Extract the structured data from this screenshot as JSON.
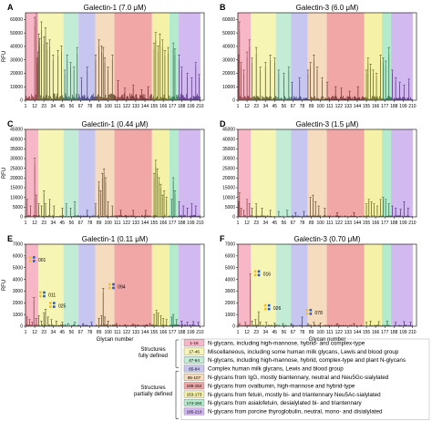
{
  "figure": {
    "xlabel": "Glycan number",
    "ylabel": "RFU",
    "xticks": [
      1,
      12,
      23,
      34,
      45,
      56,
      67,
      78,
      89,
      100,
      111,
      122,
      133,
      144,
      155,
      166,
      177,
      188,
      199,
      210
    ],
    "xlim": [
      1,
      215
    ]
  },
  "regions": [
    {
      "code": "1-16",
      "start": 1,
      "end": 16,
      "color": "#f7b7c6",
      "text": "N-glycans, including high-mannose, hybrid- and complex-type"
    },
    {
      "code": "17-46",
      "start": 17,
      "end": 46,
      "color": "#f7f5b4",
      "text": "Miscellaneous, including some human milk glycans, Lewis and blood group"
    },
    {
      "code": "47-64",
      "start": 47,
      "end": 64,
      "color": "#c3ecd6",
      "text": "N-glycans, including high-mannose, hybrid, complex-type and plant N-glycans"
    },
    {
      "code": "65-84",
      "start": 65,
      "end": 84,
      "color": "#c7c6f0",
      "text": "Complex human milk glycans, Lewis and blood group"
    },
    {
      "code": "85-107",
      "start": 85,
      "end": 107,
      "color": "#f6dcbf",
      "text": "N-glycans from IgG, mostly biantennary, neutral and Neu5Gc-sialylated"
    },
    {
      "code": "108-152",
      "start": 108,
      "end": 152,
      "color": "#f2a7a7",
      "text": "N-glycans from ovalbumin, high-mannose and hybrid-type"
    },
    {
      "code": "153-173",
      "start": 153,
      "end": 173,
      "color": "#f5f2a8",
      "text": "N-glycans from fetuin, mostly bi- and triantennary Neu5Ac-sialylated"
    },
    {
      "code": "174-184",
      "start": 174,
      "end": 184,
      "color": "#b5ebcd",
      "text": "N-glycans from asialofetuin, desialylated bi- and triantennary"
    },
    {
      "code": "185-210",
      "start": 185,
      "end": 210,
      "color": "#d2b9ef",
      "text": "N-glycans from porcine thyroglobulin, neutral, mono- and disialylated"
    }
  ],
  "legend": {
    "fully_defined": "Structures fully defined",
    "partially_defined": "Structures partially defined"
  },
  "chart_data": [
    {
      "type": "bar",
      "panel": "A",
      "title": "Galectin-1 (7.0 μM)",
      "ylabel": "RFU",
      "xlabel": "",
      "ylim": [
        0,
        65000
      ],
      "yticks": [
        0,
        10000,
        20000,
        30000,
        40000,
        50000,
        60000
      ],
      "peaks": [
        [
          12,
          55000
        ],
        [
          14,
          60000
        ],
        [
          15,
          28000
        ],
        [
          16,
          32000
        ],
        [
          17,
          44000
        ],
        [
          18,
          41000
        ],
        [
          20,
          52000
        ],
        [
          23,
          42000
        ],
        [
          25,
          48000
        ],
        [
          27,
          38000
        ],
        [
          30,
          40000
        ],
        [
          34,
          30000
        ],
        [
          40,
          33000
        ],
        [
          44,
          36000
        ],
        [
          48,
          20000
        ],
        [
          51,
          30000
        ],
        [
          55,
          25000
        ],
        [
          59,
          22000
        ],
        [
          63,
          35000
        ],
        [
          68,
          15000
        ],
        [
          75,
          22000
        ],
        [
          85,
          30000
        ],
        [
          89,
          40000
        ],
        [
          92,
          36000
        ],
        [
          94,
          35000
        ],
        [
          96,
          28000
        ],
        [
          100,
          22000
        ],
        [
          105,
          30000
        ],
        [
          112,
          13000
        ],
        [
          120,
          8000
        ],
        [
          130,
          10000
        ],
        [
          140,
          7000
        ],
        [
          148,
          9000
        ],
        [
          155,
          38000
        ],
        [
          157,
          45000
        ],
        [
          160,
          36000
        ],
        [
          162,
          44000
        ],
        [
          165,
          40000
        ],
        [
          168,
          33000
        ],
        [
          172,
          35000
        ],
        [
          178,
          38000
        ],
        [
          180,
          34000
        ],
        [
          185,
          30000
        ],
        [
          188,
          22000
        ],
        [
          195,
          18000
        ],
        [
          200,
          15000
        ],
        [
          205,
          25000
        ],
        [
          209,
          17000
        ]
      ],
      "baseline": 3000
    },
    {
      "type": "bar",
      "panel": "B",
      "title": "Galectin-3 (6.0 μM)",
      "ylabel": "",
      "xlabel": "",
      "ylim": [
        0,
        65000
      ],
      "yticks": [
        0,
        10000,
        20000,
        30000,
        40000,
        50000,
        60000
      ],
      "peaks": [
        [
          2,
          30000
        ],
        [
          3,
          52000
        ],
        [
          5,
          25000
        ],
        [
          8,
          20000
        ],
        [
          12,
          32000
        ],
        [
          15,
          40000
        ],
        [
          18,
          28000
        ],
        [
          23,
          35000
        ],
        [
          28,
          22000
        ],
        [
          34,
          25000
        ],
        [
          40,
          30000
        ],
        [
          45,
          28000
        ],
        [
          50,
          20000
        ],
        [
          56,
          18000
        ],
        [
          62,
          22000
        ],
        [
          66,
          12000
        ],
        [
          75,
          15000
        ],
        [
          85,
          20000
        ],
        [
          88,
          25000
        ],
        [
          92,
          30000
        ],
        [
          96,
          22000
        ],
        [
          102,
          15000
        ],
        [
          108,
          12000
        ],
        [
          118,
          9000
        ],
        [
          125,
          8000
        ],
        [
          135,
          6000
        ],
        [
          145,
          9000
        ],
        [
          155,
          20000
        ],
        [
          157,
          28000
        ],
        [
          160,
          24000
        ],
        [
          163,
          20000
        ],
        [
          167,
          18000
        ],
        [
          172,
          30000
        ],
        [
          175,
          28000
        ],
        [
          178,
          26000
        ],
        [
          182,
          35000
        ],
        [
          186,
          20000
        ],
        [
          190,
          15000
        ],
        [
          195,
          12000
        ],
        [
          200,
          10000
        ],
        [
          206,
          14000
        ]
      ],
      "baseline": 2000
    },
    {
      "type": "bar",
      "panel": "C",
      "title": "Galectin-1 (0.44 μM)",
      "ylabel": "RFU",
      "xlabel": "",
      "ylim": [
        0,
        45000
      ],
      "yticks": [
        0,
        5000,
        10000,
        15000,
        20000,
        25000,
        30000,
        35000,
        40000,
        45000
      ],
      "peaks": [
        [
          3,
          8000
        ],
        [
          7,
          5000
        ],
        [
          12,
          27000
        ],
        [
          14,
          10000
        ],
        [
          17,
          6000
        ],
        [
          20,
          5000
        ],
        [
          23,
          12000
        ],
        [
          25,
          6000
        ],
        [
          30,
          8000
        ],
        [
          35,
          5000
        ],
        [
          45,
          4000
        ],
        [
          50,
          6000
        ],
        [
          55,
          4000
        ],
        [
          60,
          7000
        ],
        [
          75,
          3000
        ],
        [
          85,
          6000
        ],
        [
          89,
          16000
        ],
        [
          91,
          12000
        ],
        [
          93,
          20000
        ],
        [
          95,
          22000
        ],
        [
          97,
          18000
        ],
        [
          100,
          7000
        ],
        [
          105,
          5000
        ],
        [
          115,
          3000
        ],
        [
          130,
          3000
        ],
        [
          145,
          3000
        ],
        [
          155,
          20000
        ],
        [
          157,
          26000
        ],
        [
          159,
          22000
        ],
        [
          161,
          18000
        ],
        [
          163,
          15000
        ],
        [
          165,
          10000
        ],
        [
          167,
          12000
        ],
        [
          170,
          9000
        ],
        [
          176,
          8000
        ],
        [
          178,
          18000
        ],
        [
          180,
          12000
        ],
        [
          185,
          7000
        ],
        [
          190,
          5000
        ],
        [
          195,
          4000
        ],
        [
          200,
          6000
        ],
        [
          205,
          5000
        ]
      ],
      "baseline": 600
    },
    {
      "type": "bar",
      "panel": "D",
      "title": "Galectin-3 (1.5 μM)",
      "ylabel": "",
      "xlabel": "",
      "ylim": [
        0,
        45000
      ],
      "yticks": [
        0,
        5000,
        10000,
        15000,
        20000,
        25000,
        30000,
        35000,
        40000,
        45000
      ],
      "peaks": [
        [
          2,
          7000
        ],
        [
          3,
          11000
        ],
        [
          5,
          4000
        ],
        [
          8,
          3000
        ],
        [
          12,
          8000
        ],
        [
          15,
          6000
        ],
        [
          18,
          4000
        ],
        [
          23,
          6000
        ],
        [
          30,
          4000
        ],
        [
          40,
          3000
        ],
        [
          50,
          2500
        ],
        [
          60,
          3000
        ],
        [
          70,
          2000
        ],
        [
          80,
          2500
        ],
        [
          88,
          9000
        ],
        [
          91,
          10000
        ],
        [
          94,
          7000
        ],
        [
          98,
          5000
        ],
        [
          105,
          4000
        ],
        [
          120,
          2000
        ],
        [
          140,
          2000
        ],
        [
          155,
          6000
        ],
        [
          158,
          8000
        ],
        [
          161,
          7000
        ],
        [
          164,
          6000
        ],
        [
          168,
          5000
        ],
        [
          172,
          8000
        ],
        [
          175,
          9000
        ],
        [
          178,
          8000
        ],
        [
          182,
          6000
        ],
        [
          186,
          5000
        ],
        [
          190,
          4000
        ],
        [
          196,
          3500
        ],
        [
          200,
          7000
        ],
        [
          205,
          4000
        ]
      ],
      "baseline": 500
    },
    {
      "type": "bar",
      "panel": "E",
      "title": "Galectin-1 (0.11 μM)",
      "ylabel": "RFU",
      "xlabel": "Glycan number",
      "ylim": [
        0,
        7000
      ],
      "yticks": [
        0,
        1000,
        2000,
        3000,
        4000,
        5000,
        6000,
        7000
      ],
      "peaks": [
        [
          1,
          5200
        ],
        [
          3,
          700
        ],
        [
          6,
          500
        ],
        [
          9,
          300
        ],
        [
          11,
          2200
        ],
        [
          14,
          600
        ],
        [
          17,
          800
        ],
        [
          20,
          400
        ],
        [
          23,
          1000
        ],
        [
          25,
          1300
        ],
        [
          28,
          700
        ],
        [
          32,
          500
        ],
        [
          38,
          400
        ],
        [
          45,
          300
        ],
        [
          52,
          200
        ],
        [
          60,
          300
        ],
        [
          70,
          200
        ],
        [
          80,
          300
        ],
        [
          89,
          600
        ],
        [
          92,
          800
        ],
        [
          94,
          2900
        ],
        [
          96,
          700
        ],
        [
          100,
          400
        ],
        [
          110,
          200
        ],
        [
          130,
          150
        ],
        [
          150,
          200
        ],
        [
          155,
          900
        ],
        [
          158,
          1200
        ],
        [
          160,
          1000
        ],
        [
          163,
          800
        ],
        [
          166,
          600
        ],
        [
          170,
          500
        ],
        [
          176,
          700
        ],
        [
          178,
          900
        ],
        [
          182,
          500
        ],
        [
          188,
          400
        ],
        [
          195,
          300
        ],
        [
          202,
          350
        ],
        [
          208,
          300
        ]
      ],
      "baseline": 100
    },
    {
      "type": "bar",
      "panel": "F",
      "title": "Galectin-3 (0.70 μM)",
      "ylabel": "",
      "xlabel": "Glycan number",
      "ylim": [
        0,
        7000
      ],
      "yticks": [
        0,
        1000,
        2000,
        3000,
        4000,
        5000,
        6000,
        7000
      ],
      "peaks": [
        [
          3,
          200
        ],
        [
          10,
          300
        ],
        [
          16,
          4000
        ],
        [
          18,
          400
        ],
        [
          22,
          500
        ],
        [
          26,
          1100
        ],
        [
          28,
          300
        ],
        [
          35,
          300
        ],
        [
          45,
          250
        ],
        [
          55,
          200
        ],
        [
          65,
          200
        ],
        [
          78,
          700
        ],
        [
          85,
          200
        ],
        [
          92,
          300
        ],
        [
          100,
          250
        ],
        [
          120,
          200
        ],
        [
          140,
          200
        ],
        [
          155,
          300
        ],
        [
          160,
          400
        ],
        [
          170,
          350
        ],
        [
          180,
          400
        ],
        [
          190,
          300
        ],
        [
          200,
          350
        ],
        [
          208,
          300
        ]
      ],
      "baseline": 80
    }
  ],
  "annotations": {
    "E": [
      {
        "x": 1,
        "text": "001"
      },
      {
        "x": 11,
        "text": "011"
      },
      {
        "x": 25,
        "text": "025"
      },
      {
        "x": 94,
        "text": "094"
      }
    ],
    "F": [
      {
        "x": 16,
        "text": "016"
      },
      {
        "x": 26,
        "text": "026"
      },
      {
        "x": 78,
        "text": "078"
      }
    ]
  }
}
